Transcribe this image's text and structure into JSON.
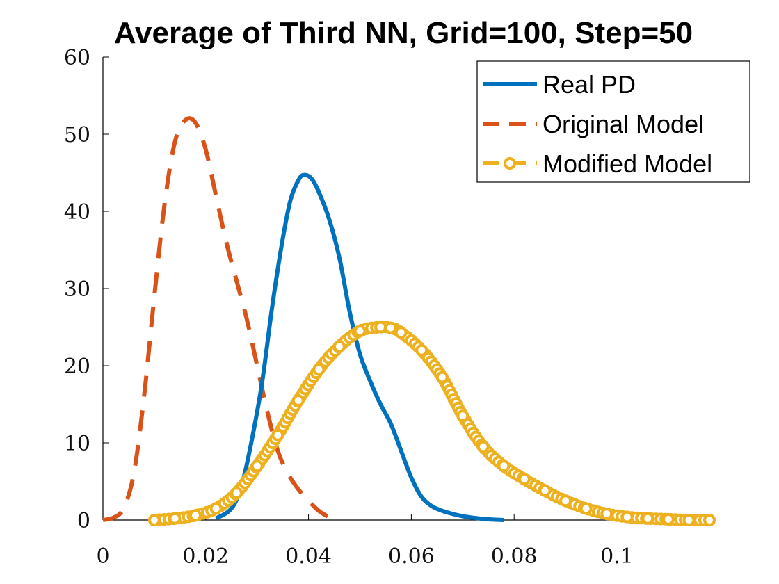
{
  "chart_data": {
    "type": "line",
    "title": "Average of Third NN, Grid=100, Step=50",
    "xlabel": "",
    "ylabel": "",
    "xlim": [
      0,
      0.118
    ],
    "ylim": [
      0,
      60
    ],
    "x_ticks": [
      0,
      0.02,
      0.04,
      0.06,
      0.08,
      0.1
    ],
    "x_tick_labels": [
      "0",
      "0.02",
      "0.04",
      "0.06",
      "0.08",
      "0.1"
    ],
    "y_ticks": [
      0,
      10,
      20,
      30,
      40,
      50,
      60
    ],
    "y_tick_labels": [
      "0",
      "10",
      "20",
      "30",
      "40",
      "50",
      "60"
    ],
    "grid": false,
    "legend_position": "top-right",
    "series": [
      {
        "name": "Real PD",
        "color": "#0072BD",
        "line_style": "solid",
        "marker": "none",
        "x": [
          0.022,
          0.025,
          0.027,
          0.029,
          0.031,
          0.033,
          0.035,
          0.0365,
          0.038,
          0.039,
          0.0405,
          0.042,
          0.044,
          0.046,
          0.048,
          0.05,
          0.052,
          0.054,
          0.056,
          0.058,
          0.06,
          0.062,
          0.064,
          0.066,
          0.068,
          0.07,
          0.072,
          0.074,
          0.076,
          0.078
        ],
        "y": [
          0.2,
          1.5,
          4.5,
          10.5,
          18,
          28,
          36.5,
          41.5,
          44,
          44.7,
          44.3,
          42.5,
          39,
          34,
          27,
          21.5,
          18,
          15,
          12.5,
          9,
          5.5,
          3,
          1.8,
          1.2,
          0.8,
          0.5,
          0.3,
          0.15,
          0.05,
          0
        ]
      },
      {
        "name": "Original Model",
        "color": "#D95319",
        "line_style": "dashed",
        "marker": "none",
        "x": [
          0,
          0.002,
          0.004,
          0.006,
          0.008,
          0.01,
          0.012,
          0.014,
          0.016,
          0.018,
          0.02,
          0.022,
          0.024,
          0.026,
          0.028,
          0.03,
          0.032,
          0.034,
          0.036,
          0.038,
          0.04,
          0.042,
          0.044,
          0.046
        ],
        "y": [
          0,
          0.3,
          1.5,
          6,
          16,
          29,
          41,
          49,
          51.8,
          51.5,
          48,
          42,
          36,
          31,
          26,
          20,
          14,
          9,
          6,
          4,
          2.5,
          1.2,
          0.4,
          0
        ]
      },
      {
        "name": "Modified Model",
        "color": "#EDB120",
        "line_style": "dashed",
        "marker": "circle",
        "x": [
          0.01,
          0.014,
          0.018,
          0.022,
          0.026,
          0.03,
          0.034,
          0.038,
          0.042,
          0.046,
          0.05,
          0.054,
          0.056,
          0.058,
          0.062,
          0.066,
          0.07,
          0.074,
          0.078,
          0.082,
          0.086,
          0.09,
          0.094,
          0.098,
          0.102,
          0.106,
          0.11,
          0.114,
          0.118
        ],
        "y": [
          0,
          0.2,
          0.6,
          1.5,
          3.5,
          7,
          11,
          15.5,
          19.5,
          22.5,
          24.5,
          25,
          24.9,
          24.3,
          22,
          18.5,
          13.5,
          9.5,
          7,
          5.3,
          3.8,
          2.5,
          1.5,
          0.8,
          0.4,
          0.2,
          0.1,
          0,
          0
        ]
      }
    ]
  }
}
